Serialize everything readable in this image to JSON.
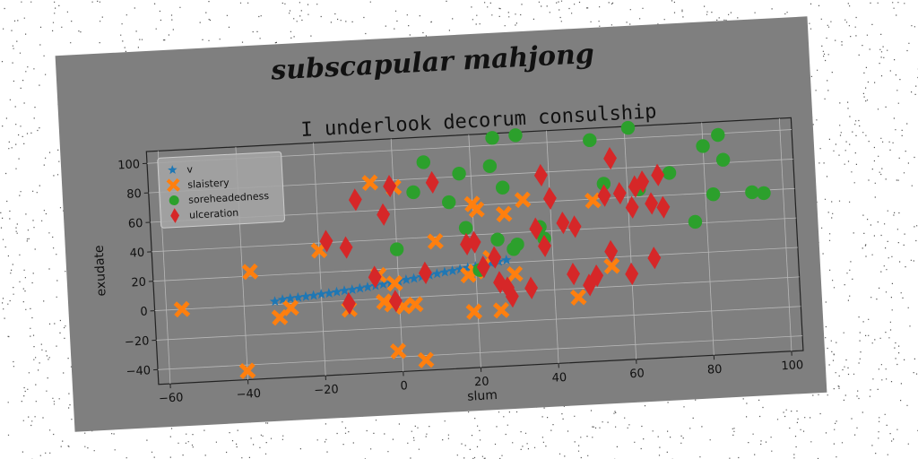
{
  "figure": {
    "suptitle": "subscapular mahjong"
  },
  "chart_data": {
    "type": "scatter",
    "title": "I underlook decorum consulship",
    "xlabel": "slum",
    "ylabel": "exudate",
    "xlim": [
      -63,
      103
    ],
    "ylim": [
      -50,
      108
    ],
    "xticks": [
      -60,
      -40,
      -20,
      0,
      20,
      40,
      60,
      80,
      100
    ],
    "yticks": [
      -40,
      -20,
      0,
      20,
      40,
      60,
      80,
      100
    ],
    "grid": true,
    "legend_position": "upper-left",
    "series": [
      {
        "name": "v",
        "color": "#1f77b4",
        "marker": "star",
        "points": [
          [
            -32,
            2
          ],
          [
            -30,
            3
          ],
          [
            -28,
            3.5
          ],
          [
            -26,
            3.8
          ],
          [
            -24,
            4.2
          ],
          [
            -22,
            4.6
          ],
          [
            -20,
            5.2
          ],
          [
            -18,
            5.6
          ],
          [
            -16,
            6.2
          ],
          [
            -14,
            6.8
          ],
          [
            -12,
            7.2
          ],
          [
            -10,
            7.8
          ],
          [
            -8,
            8.4
          ],
          [
            -6,
            9
          ],
          [
            -4,
            9.8
          ],
          [
            -2,
            10.6
          ],
          [
            0,
            11.2
          ],
          [
            2,
            12
          ],
          [
            4,
            12.6
          ],
          [
            6,
            13.4
          ],
          [
            8,
            14.2
          ],
          [
            10,
            15
          ],
          [
            12,
            15.8
          ],
          [
            14,
            16.4
          ],
          [
            16,
            17.2
          ],
          [
            18,
            18
          ],
          [
            20,
            18.6
          ],
          [
            22,
            19.4
          ],
          [
            24,
            20.2
          ],
          [
            26,
            21
          ],
          [
            28,
            21.8
          ]
        ]
      },
      {
        "name": "slaistery",
        "color": "#ff7f0e",
        "marker": "x",
        "points": [
          [
            -56,
            0
          ],
          [
            -38,
            23
          ],
          [
            -40,
            -44
          ],
          [
            -31,
            -9
          ],
          [
            -28,
            -3
          ],
          [
            -20,
            35
          ],
          [
            -13,
            -6
          ],
          [
            -6,
            79
          ],
          [
            -5,
            16
          ],
          [
            -4,
            -2
          ],
          [
            -2,
            -4
          ],
          [
            -1,
            10
          ],
          [
            -1,
            -36
          ],
          [
            0,
            75
          ],
          [
            1,
            -6
          ],
          [
            4,
            -5
          ],
          [
            6,
            -43
          ],
          [
            10,
            37
          ],
          [
            18,
            13
          ],
          [
            19,
            -12
          ],
          [
            20,
            15
          ],
          [
            20,
            61
          ],
          [
            21,
            57
          ],
          [
            24,
            24
          ],
          [
            26,
            -12
          ],
          [
            28,
            53
          ],
          [
            30,
            12
          ],
          [
            33,
            62
          ],
          [
            46,
            -6
          ],
          [
            51,
            59
          ],
          [
            55,
            14
          ]
        ]
      },
      {
        "name": "soreheadedness",
        "color": "#2ca02c",
        "marker": "circle",
        "points": [
          [
            0,
            33
          ],
          [
            5,
            71
          ],
          [
            8,
            91
          ],
          [
            14,
            63
          ],
          [
            17,
            82
          ],
          [
            18,
            45
          ],
          [
            21,
            16
          ],
          [
            25,
            86
          ],
          [
            26,
            105
          ],
          [
            26,
            36
          ],
          [
            28,
            71
          ],
          [
            30,
            29
          ],
          [
            31,
            32
          ],
          [
            32,
            106
          ],
          [
            37,
            43
          ],
          [
            38,
            35
          ],
          [
            51,
            100
          ],
          [
            54,
            70
          ],
          [
            61,
            107
          ],
          [
            63,
            65
          ],
          [
            71,
            75
          ],
          [
            77,
            41
          ],
          [
            80,
            92
          ],
          [
            82,
            59
          ],
          [
            84,
            99
          ],
          [
            85,
            82
          ],
          [
            92,
            59
          ],
          [
            95,
            58
          ]
        ]
      },
      {
        "name": "ulceration",
        "color": "#d62728",
        "marker": "diamond",
        "points": [
          [
            -18,
            41
          ],
          [
            -13,
            -2
          ],
          [
            -13,
            36
          ],
          [
            -10,
            68
          ],
          [
            -6,
            15
          ],
          [
            -3,
            57
          ],
          [
            -1,
            76
          ],
          [
            -1,
            -2
          ],
          [
            7,
            16
          ],
          [
            10,
            77
          ],
          [
            18,
            34
          ],
          [
            20,
            35
          ],
          [
            22,
            18
          ],
          [
            25,
            24
          ],
          [
            26,
            7
          ],
          [
            28,
            3
          ],
          [
            29,
            -3
          ],
          [
            34,
            2
          ],
          [
            36,
            42
          ],
          [
            38,
            30
          ],
          [
            38,
            78
          ],
          [
            40,
            62
          ],
          [
            43,
            45
          ],
          [
            46,
            42
          ],
          [
            45,
            10
          ],
          [
            49,
            2
          ],
          [
            51,
            8
          ],
          [
            54,
            62
          ],
          [
            55,
            24
          ],
          [
            56,
            87
          ],
          [
            58,
            63
          ],
          [
            60,
            8
          ],
          [
            61,
            53
          ],
          [
            62,
            67
          ],
          [
            64,
            70
          ],
          [
            66,
            55
          ],
          [
            66,
            18
          ],
          [
            68,
            74
          ],
          [
            69,
            52
          ]
        ]
      }
    ]
  }
}
